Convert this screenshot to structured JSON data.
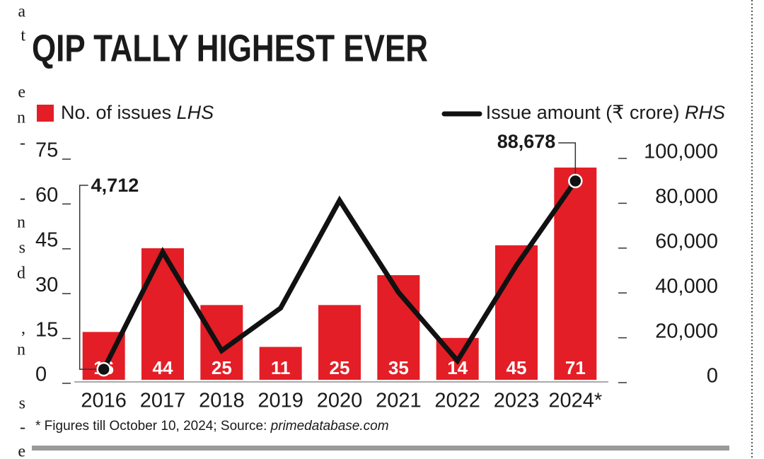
{
  "chart_data": {
    "type": "bar_line",
    "title": "QIP TALLY HIGHEST EVER",
    "categories": [
      "2016",
      "2017",
      "2018",
      "2019",
      "2020",
      "2021",
      "2022",
      "2023",
      "2024*"
    ],
    "series": [
      {
        "name": "No. of issues",
        "axis_note": "LHS",
        "type": "bar",
        "color": "#e41e26",
        "values": [
          16,
          44,
          25,
          11,
          25,
          35,
          14,
          45,
          71
        ]
      },
      {
        "name": "Issue amount (₹ crore)",
        "axis_note": "RHS",
        "type": "line",
        "axis": "y2",
        "color": "#111111",
        "values": [
          4712,
          57000,
          13000,
          32000,
          80000,
          39000,
          8500,
          51000,
          88678
        ],
        "value_labels": [
          "4,712",
          null,
          null,
          null,
          null,
          null,
          null,
          null,
          "88,678"
        ]
      }
    ],
    "ylim": [
      0,
      75
    ],
    "yticks": [
      0,
      15,
      30,
      45,
      60,
      75
    ],
    "y2lim": [
      0,
      100000
    ],
    "y2ticks": [
      0,
      {
        "value": 20000,
        "label": "20,000"
      },
      {
        "value": 40000,
        "label": "40,000"
      },
      {
        "value": 60000,
        "label": "60,000"
      },
      {
        "value": 80000,
        "label": "80,000"
      },
      {
        "value": 100000,
        "label": "100,000"
      }
    ],
    "footnote": "* Figures till October 10, 2024; Source: ",
    "source": "primedatabase.com",
    "margin_text": [
      "a",
      "t",
      "e",
      "n",
      "-",
      "-",
      "n",
      "s",
      "d",
      ",",
      "n",
      "s",
      "-",
      "e"
    ]
  }
}
